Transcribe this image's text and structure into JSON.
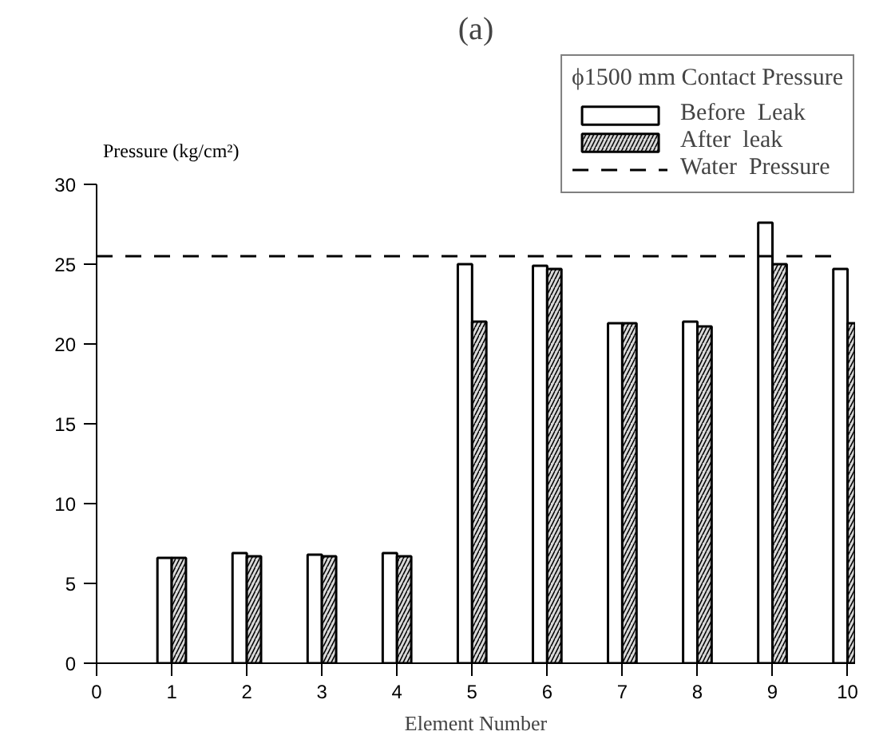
{
  "chart_data": {
    "type": "bar",
    "title": "(a)",
    "xlabel": "Element Number",
    "ylabel": "Pressure (kg/cm²)",
    "legend_title": "ϕ1500 mm Contact Pressure",
    "x": [
      1,
      2,
      3,
      4,
      5,
      6,
      7,
      8,
      9,
      10
    ],
    "series": [
      {
        "name": "Before  Leak",
        "color": "#ffffff",
        "values": [
          6.6,
          6.9,
          6.8,
          6.9,
          25.0,
          24.9,
          21.3,
          21.4,
          27.6,
          24.7
        ]
      },
      {
        "name": "After  leak",
        "color": "#d9d9d9",
        "values": [
          6.6,
          6.7,
          6.7,
          6.7,
          21.4,
          24.7,
          21.3,
          21.1,
          25.0,
          21.3
        ]
      }
    ],
    "xlim": [
      0,
      10.1
    ],
    "xticks": [
      0,
      1,
      2,
      3,
      4,
      5,
      6,
      7,
      8,
      9,
      10
    ],
    "ylim": [
      0,
      30
    ],
    "yticks": [
      0,
      5,
      10,
      15,
      20,
      25,
      30
    ],
    "ref_lines": [
      {
        "axis": "y",
        "value": 25.5,
        "label": "Water  Pressure",
        "line_style": "dashed",
        "color": "#000000"
      }
    ],
    "grid": false,
    "legend": "top right"
  }
}
